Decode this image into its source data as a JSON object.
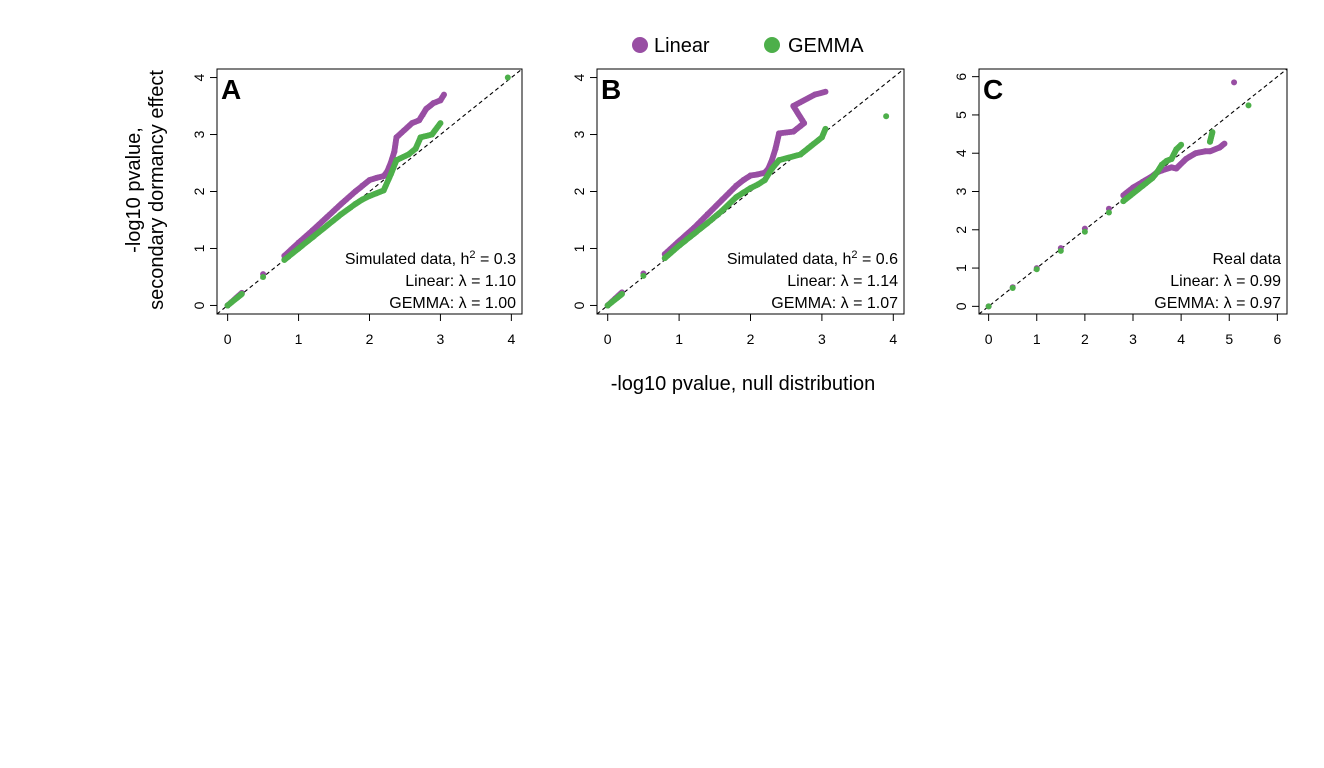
{
  "legend": {
    "items": [
      {
        "label": "Linear",
        "color": "#984ea3"
      },
      {
        "label": "GEMMA",
        "color": "#4daf4a"
      }
    ]
  },
  "shared_xlabel": "-log10 pvalue, null distribution",
  "shared_ylabel": [
    "-log10 pvalue,",
    "secondary dormancy effect"
  ],
  "chart_data": [
    {
      "panel": "A",
      "type": "scatter",
      "xlabel": "-log10 pvalue, null distribution",
      "ylabel": "-log10 pvalue, secondary dormancy effect",
      "xlim": [
        -0.15,
        4.15
      ],
      "ylim": [
        -0.15,
        4.15
      ],
      "xticks": [
        "0",
        "1",
        "2",
        "3",
        "4"
      ],
      "yticks": [
        "0",
        "1",
        "2",
        "3",
        "4"
      ],
      "reference_line": "y = x (dashed)",
      "annotation": {
        "line1_pre": "Simulated data, h",
        "line1_sup": "2",
        "line1_post": " = 0.3",
        "line2": "Linear: λ = 1.10",
        "line3": "GEMMA: λ = 1.00"
      },
      "series": [
        {
          "name": "Linear",
          "color": "#984ea3",
          "points": [
            [
              0,
              0
            ],
            [
              0.2,
              0.22
            ],
            [
              0.5,
              0.55
            ],
            [
              0.8,
              0.87
            ],
            [
              1.0,
              1.1
            ],
            [
              1.2,
              1.32
            ],
            [
              1.4,
              1.55
            ],
            [
              1.6,
              1.78
            ],
            [
              1.8,
              2.0
            ],
            [
              1.9,
              2.1
            ],
            [
              2.0,
              2.2
            ],
            [
              2.1,
              2.24
            ],
            [
              2.2,
              2.27
            ],
            [
              2.25,
              2.35
            ],
            [
              2.3,
              2.5
            ],
            [
              2.35,
              2.7
            ],
            [
              2.38,
              2.95
            ],
            [
              2.6,
              3.2
            ],
            [
              2.7,
              3.25
            ],
            [
              2.75,
              3.35
            ],
            [
              2.8,
              3.45
            ],
            [
              2.9,
              3.55
            ],
            [
              3.0,
              3.6
            ],
            [
              3.05,
              3.7
            ]
          ]
        },
        {
          "name": "GEMMA",
          "color": "#4daf4a",
          "points": [
            [
              0,
              0
            ],
            [
              0.2,
              0.2
            ],
            [
              0.5,
              0.5
            ],
            [
              0.8,
              0.8
            ],
            [
              1.0,
              1.0
            ],
            [
              1.2,
              1.2
            ],
            [
              1.4,
              1.4
            ],
            [
              1.6,
              1.6
            ],
            [
              1.8,
              1.78
            ],
            [
              1.9,
              1.86
            ],
            [
              2.0,
              1.92
            ],
            [
              2.1,
              1.97
            ],
            [
              2.2,
              2.02
            ],
            [
              2.3,
              2.3
            ],
            [
              2.38,
              2.55
            ],
            [
              2.55,
              2.65
            ],
            [
              2.65,
              2.75
            ],
            [
              2.72,
              2.95
            ],
            [
              2.88,
              3.0
            ],
            [
              3.0,
              3.2
            ],
            [
              3.95,
              4.0
            ]
          ]
        }
      ]
    },
    {
      "panel": "B",
      "type": "scatter",
      "xlabel": "-log10 pvalue, null distribution",
      "ylabel": "-log10 pvalue, secondary dormancy effect",
      "xlim": [
        -0.15,
        4.15
      ],
      "ylim": [
        -0.15,
        4.15
      ],
      "xticks": [
        "0",
        "1",
        "2",
        "3",
        "4"
      ],
      "yticks": [
        "0",
        "1",
        "2",
        "3",
        "4"
      ],
      "reference_line": "y = x (dashed)",
      "annotation": {
        "line1_pre": "Simulated data, h",
        "line1_sup": "2",
        "line1_post": " = 0.6",
        "line2": "Linear: λ = 1.14",
        "line3": "GEMMA: λ = 1.07"
      },
      "series": [
        {
          "name": "Linear",
          "color": "#984ea3",
          "points": [
            [
              0,
              0
            ],
            [
              0.2,
              0.23
            ],
            [
              0.5,
              0.56
            ],
            [
              0.8,
              0.9
            ],
            [
              1.0,
              1.13
            ],
            [
              1.2,
              1.35
            ],
            [
              1.4,
              1.6
            ],
            [
              1.6,
              1.85
            ],
            [
              1.8,
              2.1
            ],
            [
              1.9,
              2.2
            ],
            [
              2.0,
              2.28
            ],
            [
              2.1,
              2.3
            ],
            [
              2.2,
              2.33
            ],
            [
              2.25,
              2.4
            ],
            [
              2.3,
              2.55
            ],
            [
              2.35,
              2.75
            ],
            [
              2.4,
              3.02
            ],
            [
              2.6,
              3.05
            ],
            [
              2.7,
              3.15
            ],
            [
              2.75,
              3.2
            ],
            [
              2.6,
              3.5
            ],
            [
              2.9,
              3.7
            ],
            [
              3.05,
              3.75
            ]
          ]
        },
        {
          "name": "GEMMA",
          "color": "#4daf4a",
          "points": [
            [
              0,
              0
            ],
            [
              0.2,
              0.2
            ],
            [
              0.5,
              0.52
            ],
            [
              0.8,
              0.83
            ],
            [
              1.0,
              1.05
            ],
            [
              1.2,
              1.25
            ],
            [
              1.4,
              1.45
            ],
            [
              1.6,
              1.66
            ],
            [
              1.8,
              1.9
            ],
            [
              1.9,
              1.98
            ],
            [
              2.0,
              2.06
            ],
            [
              2.1,
              2.12
            ],
            [
              2.2,
              2.2
            ],
            [
              2.3,
              2.4
            ],
            [
              2.4,
              2.55
            ],
            [
              2.55,
              2.6
            ],
            [
              2.7,
              2.65
            ],
            [
              2.85,
              2.8
            ],
            [
              3.0,
              2.95
            ],
            [
              3.05,
              3.1
            ],
            [
              3.9,
              3.32
            ]
          ]
        }
      ]
    },
    {
      "panel": "C",
      "type": "scatter",
      "xlabel": "-log10 pvalue, null distribution",
      "ylabel": "-log10 pvalue, secondary dormancy effect",
      "xlim": [
        -0.2,
        6.2
      ],
      "ylim": [
        -0.2,
        6.2
      ],
      "xticks": [
        "0",
        "1",
        "2",
        "3",
        "4",
        "5",
        "6"
      ],
      "yticks": [
        "0",
        "1",
        "2",
        "3",
        "4",
        "5",
        "6"
      ],
      "reference_line": "y = x (dashed)",
      "annotation": {
        "line1_pre": "Real data",
        "line1_sup": "",
        "line1_post": "",
        "line2": "Linear: λ = 0.99",
        "line3": "GEMMA: λ = 0.97"
      },
      "series": [
        {
          "name": "Linear",
          "color": "#984ea3",
          "points": [
            [
              0,
              0
            ],
            [
              0.5,
              0.5
            ],
            [
              1.0,
              1.0
            ],
            [
              1.5,
              1.52
            ],
            [
              2.0,
              2.03
            ],
            [
              2.5,
              2.55
            ],
            [
              2.8,
              2.9
            ],
            [
              3.0,
              3.1
            ],
            [
              3.2,
              3.25
            ],
            [
              3.4,
              3.4
            ],
            [
              3.5,
              3.5
            ],
            [
              3.6,
              3.55
            ],
            [
              3.8,
              3.63
            ],
            [
              3.9,
              3.6
            ],
            [
              4.1,
              3.85
            ],
            [
              4.3,
              4.0
            ],
            [
              4.5,
              4.05
            ],
            [
              4.6,
              4.05
            ],
            [
              4.8,
              4.15
            ],
            [
              4.9,
              4.25
            ],
            [
              5.1,
              5.85
            ]
          ]
        },
        {
          "name": "GEMMA",
          "color": "#4daf4a",
          "points": [
            [
              0,
              0
            ],
            [
              0.5,
              0.48
            ],
            [
              1.0,
              0.97
            ],
            [
              1.5,
              1.45
            ],
            [
              2.0,
              1.95
            ],
            [
              2.5,
              2.45
            ],
            [
              2.8,
              2.75
            ],
            [
              3.0,
              2.95
            ],
            [
              3.2,
              3.15
            ],
            [
              3.4,
              3.35
            ],
            [
              3.5,
              3.5
            ],
            [
              3.6,
              3.7
            ],
            [
              3.7,
              3.8
            ],
            [
              3.8,
              3.85
            ],
            [
              3.9,
              4.1
            ],
            [
              4.0,
              4.22
            ],
            [
              4.6,
              4.3
            ],
            [
              4.65,
              4.55
            ],
            [
              5.4,
              5.25
            ]
          ]
        }
      ]
    }
  ]
}
